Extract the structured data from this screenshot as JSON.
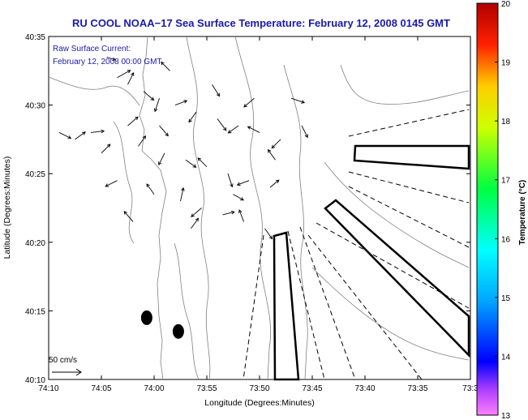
{
  "chart_data": {
    "type": "map",
    "title": "RU COOL  NOAA−17  Sea Surface Temperature:  February 12, 2008 0145 GMT",
    "annotation": [
      "Raw Surface Current:",
      "February 12, 2008 00:00 GMT"
    ],
    "scale_label": "50 cm/s",
    "xlabel": "Longitude (Degrees:Minutes)",
    "ylabel": "Latitude (Degrees:Minutes)",
    "x_ticks": [
      "74:10",
      "74:05",
      "74:00",
      "73:55",
      "73:50",
      "73:45",
      "73:40",
      "73:35",
      "73:3"
    ],
    "y_ticks": [
      "40:35",
      "40:30",
      "40:25",
      "40:20",
      "40:15",
      "40:10"
    ],
    "xlim_minutes_west": [
      10,
      -30
    ],
    "ylim_minutes_north": [
      10,
      35
    ],
    "colorbar": {
      "label": "Temperature (°C)",
      "min": 13,
      "max": 20,
      "ticks": [
        "20",
        "19",
        "18",
        "17",
        "16",
        "15",
        "14",
        "13"
      ]
    },
    "vector_field": [
      {
        "lon": 4.5,
        "lat": 33.5,
        "u": 0.6,
        "v": -0.2
      },
      {
        "lon": 3.5,
        "lat": 32.0,
        "u": 0.9,
        "v": 0.5
      },
      {
        "lon": 2.5,
        "lat": 31.5,
        "u": 0.4,
        "v": 0.8
      },
      {
        "lon": 1.0,
        "lat": 31.0,
        "u": 0.7,
        "v": -0.6
      },
      {
        "lon": -0.5,
        "lat": 30.5,
        "u": -0.3,
        "v": -0.9
      },
      {
        "lon": -2.0,
        "lat": 30.0,
        "u": 0.8,
        "v": 0.3
      },
      {
        "lon": -4.0,
        "lat": 29.5,
        "u": -0.5,
        "v": -0.7
      },
      {
        "lon": -6.0,
        "lat": 29.0,
        "u": 0.6,
        "v": -0.8
      },
      {
        "lon": -8.0,
        "lat": 28.5,
        "u": -0.7,
        "v": -0.5
      },
      {
        "lon": -10.0,
        "lat": 28.0,
        "u": -0.8,
        "v": 0.4
      },
      {
        "lon": -12.0,
        "lat": 27.5,
        "u": -0.6,
        "v": -0.6
      },
      {
        "lon": 1.5,
        "lat": 27.0,
        "u": 0.5,
        "v": 0.7
      },
      {
        "lon": -1.0,
        "lat": 26.5,
        "u": -0.4,
        "v": -0.8
      },
      {
        "lon": -3.0,
        "lat": 26.0,
        "u": 0.7,
        "v": -0.5
      },
      {
        "lon": -5.0,
        "lat": 25.5,
        "u": -0.6,
        "v": 0.6
      },
      {
        "lon": -7.0,
        "lat": 25.0,
        "u": 0.3,
        "v": -0.9
      },
      {
        "lon": -9.0,
        "lat": 24.5,
        "u": -0.8,
        "v": -0.3
      },
      {
        "lon": -11.0,
        "lat": 24.0,
        "u": 0.6,
        "v": 0.5
      },
      {
        "lon": 0.0,
        "lat": 23.5,
        "u": -0.5,
        "v": 0.7
      },
      {
        "lon": -2.5,
        "lat": 23.0,
        "u": 0.2,
        "v": 0.9
      },
      {
        "lon": -4.5,
        "lat": 22.5,
        "u": -0.7,
        "v": -0.6
      },
      {
        "lon": -6.5,
        "lat": 22.0,
        "u": 0.8,
        "v": 0.2
      },
      {
        "lon": -8.5,
        "lat": 21.5,
        "u": -0.3,
        "v": 0.8
      },
      {
        "lon": -10.5,
        "lat": 21.0,
        "u": 0.5,
        "v": -0.7
      },
      {
        "lon": 2.0,
        "lat": 21.5,
        "u": -0.6,
        "v": 0.7
      },
      {
        "lon": 3.5,
        "lat": 24.5,
        "u": -0.8,
        "v": -0.4
      },
      {
        "lon": 2.5,
        "lat": 28.5,
        "u": 0.7,
        "v": 0.6
      },
      {
        "lon": -13.0,
        "lat": 30.5,
        "u": 0.9,
        "v": -0.3
      },
      {
        "lon": -14.0,
        "lat": 28.5,
        "u": 0.4,
        "v": -0.8
      },
      {
        "lon": -1.5,
        "lat": 32.5,
        "u": -0.6,
        "v": 0.6
      },
      {
        "lon": -5.5,
        "lat": 31.5,
        "u": 0.5,
        "v": -0.8
      },
      {
        "lon": -9.5,
        "lat": 30.5,
        "u": -0.7,
        "v": -0.6
      },
      {
        "lon": 9.0,
        "lat": 28.0,
        "u": 0.8,
        "v": -0.4
      },
      {
        "lon": 7.5,
        "lat": 27.5,
        "u": 0.7,
        "v": 0.5
      },
      {
        "lon": 6.0,
        "lat": 28.0,
        "u": 0.9,
        "v": 0.1
      },
      {
        "lon": 5.0,
        "lat": 26.5,
        "u": 0.6,
        "v": 0.6
      },
      {
        "lon": -3.5,
        "lat": 21.0,
        "u": 0.5,
        "v": 0.7
      },
      {
        "lon": -7.5,
        "lat": 23.5,
        "u": 0.7,
        "v": -0.4
      },
      {
        "lon": -11.5,
        "lat": 26.0,
        "u": -0.5,
        "v": 0.7
      },
      {
        "lon": -0.5,
        "lat": 28.5,
        "u": 0.6,
        "v": -0.7
      }
    ],
    "markers": [
      {
        "lon": 0.7,
        "lat": 14.5
      },
      {
        "lon": -2.3,
        "lat": 13.5
      }
    ]
  }
}
